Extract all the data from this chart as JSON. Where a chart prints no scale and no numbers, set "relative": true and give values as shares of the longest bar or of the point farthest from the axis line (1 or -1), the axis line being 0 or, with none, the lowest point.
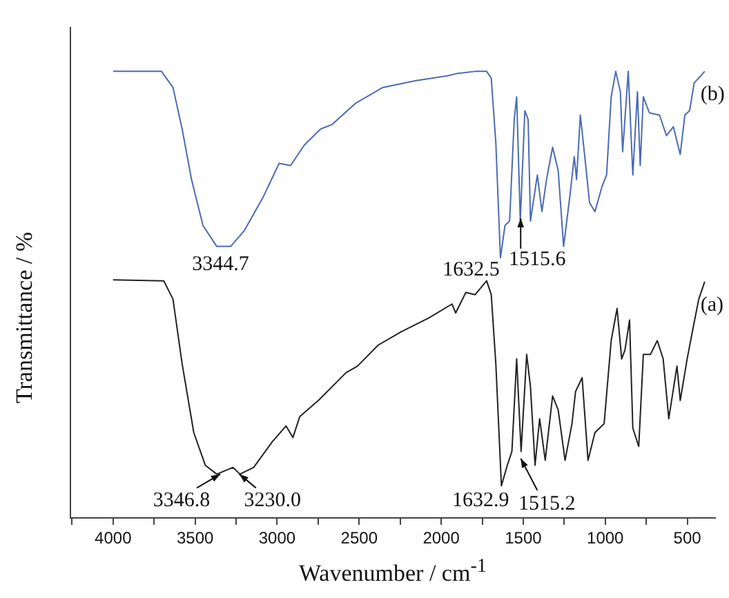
{
  "chart_data": {
    "type": "line",
    "xlabel": "Wavenumber / cm$^{-1}$",
    "ylabel": "Transmittance / %",
    "relative": true,
    "legend": false,
    "grid": false,
    "xlim": [
      4260,
      330
    ],
    "xticks": [
      {
        "value": 4250,
        "label": null
      },
      4000,
      {
        "value": 3750,
        "label": null
      },
      3500,
      {
        "value": 3250,
        "label": null
      },
      3000,
      {
        "value": 2750,
        "label": null
      },
      2500,
      {
        "value": 2250,
        "label": null
      },
      2000,
      {
        "value": 1750,
        "label": null
      },
      1500,
      {
        "value": 1250,
        "label": null
      },
      1000,
      {
        "value": 750,
        "label": null
      },
      500
    ],
    "series": [
      {
        "name": "(b)",
        "color": "#4a6bb5",
        "x": [
          4000,
          3705,
          3635,
          3579,
          3522,
          3452,
          3368,
          3283,
          3199,
          3087,
          2988,
          2918,
          2834,
          2735,
          2665,
          2524,
          2356,
          2159,
          1962,
          1906,
          1793,
          1723,
          1695,
          1667,
          1639,
          1611,
          1583,
          1555,
          1540,
          1518,
          1490,
          1470,
          1456,
          1414,
          1386,
          1358,
          1321,
          1287,
          1254,
          1217,
          1189,
          1175,
          1152,
          1119,
          1096,
          1063,
          1020,
          992,
          964,
          936,
          908,
          894,
          860,
          832,
          804,
          787,
          768,
          731,
          669,
          627,
          585,
          543,
          515,
          486,
          458,
          394
        ],
        "values": [
          1.0,
          1.0,
          0.964,
          0.871,
          0.758,
          0.655,
          0.608,
          0.608,
          0.644,
          0.717,
          0.794,
          0.789,
          0.835,
          0.871,
          0.881,
          0.928,
          0.964,
          0.979,
          0.99,
          0.995,
          1.0,
          1.0,
          0.985,
          0.84,
          0.583,
          0.655,
          0.665,
          0.892,
          0.943,
          0.665,
          0.912,
          0.892,
          0.665,
          0.768,
          0.686,
          0.758,
          0.83,
          0.778,
          0.608,
          0.717,
          0.809,
          0.758,
          0.902,
          0.789,
          0.706,
          0.686,
          0.742,
          0.768,
          0.943,
          1.0,
          0.954,
          0.82,
          1.0,
          0.768,
          0.954,
          0.789,
          0.943,
          0.907,
          0.902,
          0.856,
          0.876,
          0.814,
          0.902,
          0.912,
          0.974,
          1.0
        ]
      },
      {
        "name": "(a)",
        "color": "#222222",
        "x": [
          4000,
          3691,
          3635,
          3579,
          3508,
          3438,
          3368,
          3269,
          3227,
          3143,
          3031,
          2946,
          2904,
          2862,
          2749,
          2581,
          2510,
          2384,
          2243,
          2075,
          1934,
          1912,
          1850,
          1793,
          1723,
          1695,
          1667,
          1633,
          1597,
          1569,
          1540,
          1513,
          1479,
          1456,
          1428,
          1400,
          1366,
          1321,
          1287,
          1245,
          1203,
          1181,
          1141,
          1105,
          1063,
          1007,
          964,
          928,
          900,
          880,
          852,
          832,
          796,
          768,
          725,
          683,
          647,
          613,
          563,
          543,
          501,
          458,
          430,
          394
        ],
        "values": [
          0.533,
          0.531,
          0.49,
          0.345,
          0.191,
          0.118,
          0.098,
          0.113,
          0.098,
          0.113,
          0.17,
          0.206,
          0.18,
          0.227,
          0.263,
          0.325,
          0.34,
          0.387,
          0.417,
          0.448,
          0.479,
          0.459,
          0.505,
          0.5,
          0.531,
          0.5,
          0.345,
          0.072,
          0.118,
          0.149,
          0.356,
          0.149,
          0.366,
          0.294,
          0.118,
          0.222,
          0.129,
          0.273,
          0.242,
          0.129,
          0.211,
          0.283,
          0.314,
          0.129,
          0.191,
          0.211,
          0.397,
          0.469,
          0.356,
          0.376,
          0.443,
          0.201,
          0.16,
          0.366,
          0.366,
          0.397,
          0.356,
          0.222,
          0.34,
          0.263,
          0.356,
          0.438,
          0.49,
          0.529
        ]
      }
    ],
    "annotations": [
      {
        "text": "3344.7",
        "x": 3344.7,
        "y": 0.608
      },
      {
        "text": "1632.5",
        "x": 1632.5,
        "y": 0.583
      },
      {
        "text": "1515.6",
        "x": 1515.6,
        "y": 0.671
      },
      {
        "text": "3346.8",
        "x": 3346.8,
        "y": 0.098
      },
      {
        "text": "3230.0",
        "x": 3230.0,
        "y": 0.098
      },
      {
        "text": "1632.9",
        "x": 1632.9,
        "y": 0.072
      },
      {
        "text": "1515.2",
        "x": 1515.2,
        "y": 0.133
      }
    ]
  }
}
